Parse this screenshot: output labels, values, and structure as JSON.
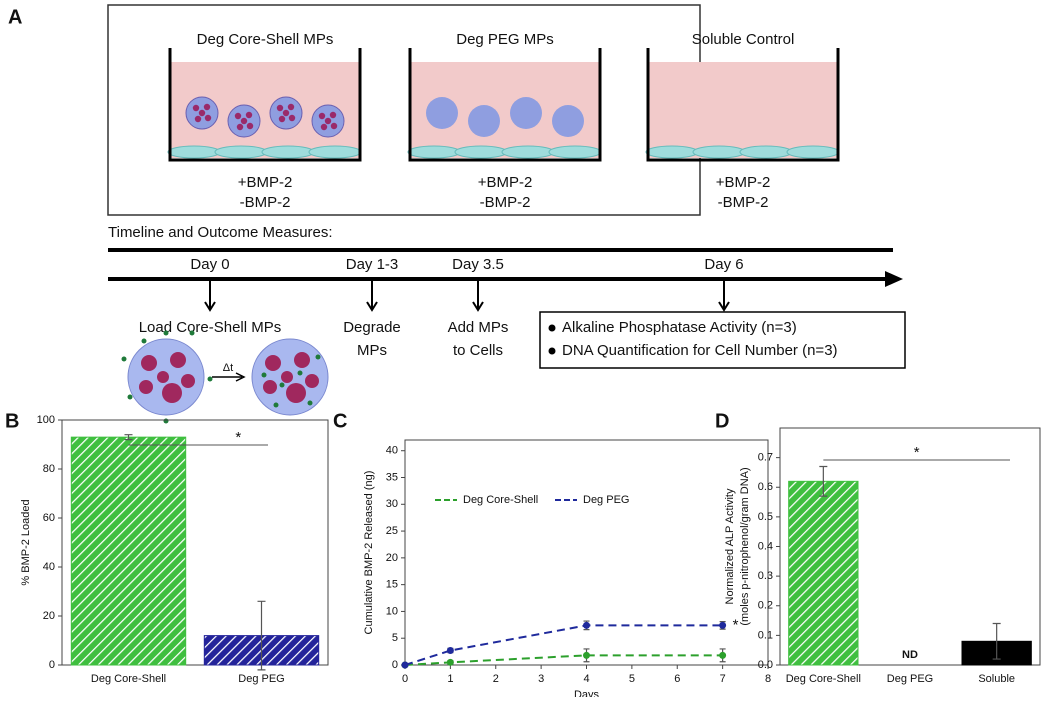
{
  "panels": [
    "A",
    "B",
    "C",
    "D"
  ],
  "diagram": {
    "wells": [
      {
        "title": "Deg Core-Shell MPs",
        "conditions": [
          "+BMP-2",
          "-BMP-2"
        ]
      },
      {
        "title": "Deg PEG MPs",
        "conditions": [
          "+BMP-2",
          "-BMP-2"
        ]
      },
      {
        "title": "Soluble Control",
        "conditions": [
          "+BMP-2",
          "-BMP-2"
        ]
      }
    ],
    "timeline_title": "Timeline and Outcome Measures:",
    "timeline": [
      {
        "day": "Day 0",
        "label": [
          "Load Core-Shell MPs"
        ]
      },
      {
        "day": "Day 1-3",
        "label": [
          "Degrade",
          "MPs"
        ]
      },
      {
        "day": "Day 3.5",
        "label": [
          "Add MPs",
          "to Cells"
        ]
      },
      {
        "day": "Day 6",
        "label": []
      }
    ],
    "delta": "Δt",
    "measures": [
      "Alkaline Phosphatase Activity (n=3)",
      "DNA Quantification for Cell Number (n=3)"
    ]
  },
  "chart_data": [
    {
      "type": "bar",
      "categories": [
        "Deg Core-Shell",
        "Deg PEG"
      ],
      "values": [
        93,
        12
      ],
      "errors": [
        1,
        14
      ],
      "colors": [
        "#3fbf3f",
        "#23239a"
      ],
      "hatch": [
        true,
        true
      ],
      "ylabel": [
        "% BMP-2 Loaded"
      ],
      "ylim": [
        0,
        100
      ],
      "yticks": [
        0,
        20,
        40,
        60,
        80,
        100
      ],
      "annotation": "*"
    },
    {
      "type": "line",
      "x": [
        0,
        1,
        4,
        7
      ],
      "series": [
        {
          "name": "Deg Core-Shell",
          "color": "#2ca02c",
          "values": [
            0,
            0.5,
            1.8,
            1.8
          ],
          "errors": [
            0,
            0.3,
            1.2,
            1.2
          ]
        },
        {
          "name": "Deg PEG",
          "color": "#1f2a9c",
          "values": [
            0,
            2.7,
            7.4,
            7.4
          ],
          "errors": [
            0,
            0.4,
            0.8,
            0.7
          ]
        }
      ],
      "xlabel": "Days",
      "ylabel": [
        "Cumulative BMP-2 Released (ng)"
      ],
      "xlim": [
        0,
        8
      ],
      "xticks": [
        0,
        1,
        2,
        3,
        4,
        5,
        6,
        7,
        8
      ],
      "ylim": [
        0,
        42
      ],
      "yticks": [
        0,
        5,
        10,
        15,
        20,
        25,
        30,
        35,
        40
      ],
      "annotation": "*"
    },
    {
      "type": "bar",
      "categories": [
        "Deg Core-Shell",
        "Deg PEG",
        "Soluble"
      ],
      "values": [
        0.62,
        null,
        0.08
      ],
      "errors": [
        0.05,
        null,
        0.06
      ],
      "value_labels": [
        null,
        "ND",
        null
      ],
      "colors": [
        "#3fbf3f",
        "#23239a",
        "#000000"
      ],
      "hatch": [
        true,
        true,
        false
      ],
      "ylabel": [
        "Normalized ALP Activity",
        "(moles p-nitrophenol/gram DNA)"
      ],
      "ylim": [
        0,
        0.8
      ],
      "yticks": [
        {
          "value": 0,
          "label": "0.0"
        },
        0.1,
        0.2,
        0.3,
        0.4,
        0.5,
        0.6,
        0.7
      ],
      "annotation": "*"
    }
  ]
}
